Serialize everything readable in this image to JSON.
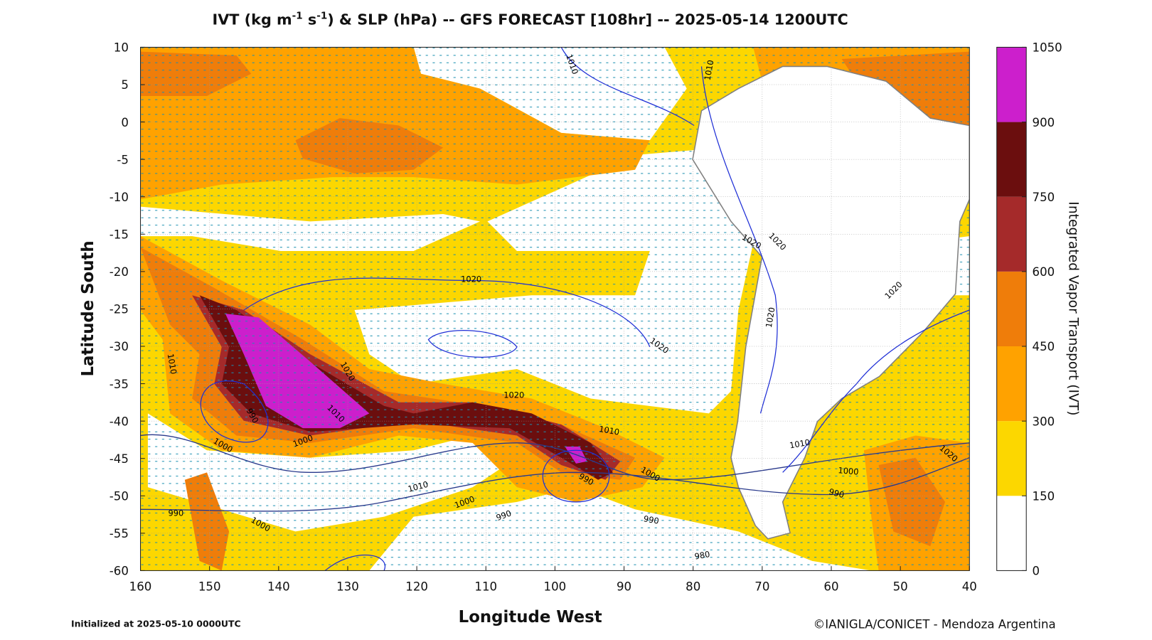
{
  "title": {
    "parts": [
      "IVT (kg m",
      "-1",
      " s",
      "-1",
      ") & SLP (hPa) -- GFS FORECAST [108hr] -- 2025-05-14 1200UTC"
    ]
  },
  "map": {
    "xlabel": "Longitude West",
    "ylabel": "Latitude South",
    "xlim": [
      160,
      40
    ],
    "ylim": [
      10,
      -60
    ],
    "xticks": [
      160,
      150,
      140,
      130,
      120,
      110,
      100,
      90,
      80,
      70,
      60,
      50,
      40
    ],
    "yticks": [
      10,
      5,
      0,
      -5,
      -10,
      -15,
      -20,
      -25,
      -30,
      -35,
      -40,
      -45,
      -50,
      -55,
      -60
    ],
    "contour_labels": [
      "1010",
      "1010",
      "1020",
      "1020",
      "1020",
      "1020",
      "1020",
      "1020",
      "1020",
      "1020",
      "1010",
      "1010",
      "990",
      "1000",
      "1000",
      "1010",
      "1010",
      "1000",
      "1000",
      "990",
      "1020",
      "1010",
      "1000",
      "990",
      "990",
      "990",
      "1000",
      "990",
      "980"
    ]
  },
  "colorbar": {
    "label": "Integrated Vapor Transport (IVT)",
    "levels": [
      0,
      150,
      300,
      450,
      600,
      750,
      900,
      1050
    ],
    "colors": [
      "#ffffff",
      "#fcd700",
      "#ffa200",
      "#ef7d0a",
      "#a52a2a",
      "#6b0e0e",
      "#cc1fcc"
    ]
  },
  "footer": {
    "left": "Initialized at 2025-05-10 0000UTC",
    "right": "©IANIGLA/CONICET - Mendoza Argentina"
  }
}
